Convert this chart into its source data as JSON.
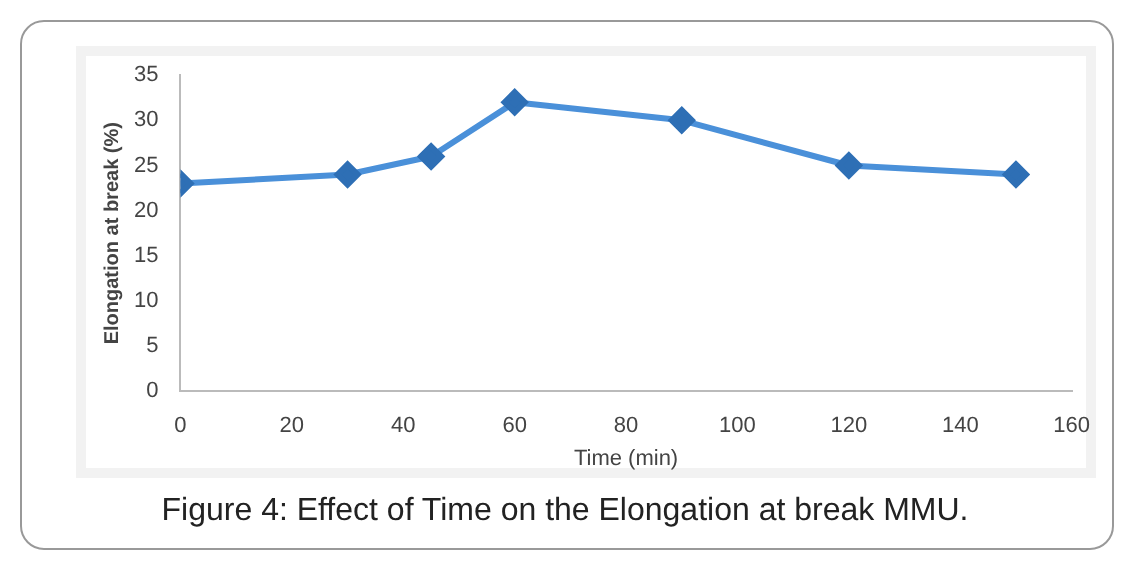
{
  "chart_data": {
    "type": "line",
    "title": "Figure 4: Effect of Time on the Elongation at break MMU.",
    "xlabel": "Time (min)",
    "ylabel": "Elongation at break (%)",
    "x": [
      0,
      30,
      45,
      60,
      90,
      120,
      150
    ],
    "series": [
      {
        "color": "#4a90d9",
        "values": [
          23,
          24,
          26,
          32,
          30,
          25,
          24
        ]
      }
    ],
    "xlim": [
      0,
      160
    ],
    "xticks": [
      0,
      20,
      40,
      60,
      80,
      100,
      120,
      140,
      160
    ],
    "ylim": [
      0,
      35
    ],
    "yticks": [
      0,
      5,
      10,
      15,
      20,
      25,
      30,
      35
    ],
    "grid": false,
    "legend": false,
    "marker": "diamond",
    "line_style": "solid"
  }
}
